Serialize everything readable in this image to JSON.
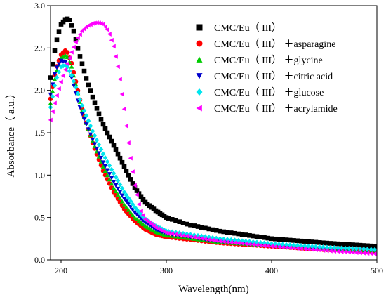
{
  "chart_data": {
    "type": "scatter",
    "title": "",
    "xlabel": "Wavelength(nm)",
    "ylabel": "Absorbance（ a.u.）",
    "xlim": [
      190,
      500
    ],
    "ylim": [
      0.0,
      3.0
    ],
    "xticks": [
      200,
      300,
      400,
      500
    ],
    "xtick_labels": [
      "200",
      "300",
      "400",
      "500"
    ],
    "yticks": [
      0.0,
      0.5,
      1.0,
      1.5,
      2.0,
      2.5,
      3.0
    ],
    "ytick_labels": [
      "0.0",
      "0.5",
      "1.0",
      "1.5",
      "2.0",
      "2.5",
      "3.0"
    ],
    "grid": false,
    "legend_position": "top-right",
    "series": [
      {
        "name": "CMC/Eu（ III）",
        "marker": "square",
        "color": "#000000",
        "points": [
          [
            190,
            2.15
          ],
          [
            195,
            2.55
          ],
          [
            200,
            2.78
          ],
          [
            205,
            2.85
          ],
          [
            208,
            2.83
          ],
          [
            212,
            2.7
          ],
          [
            218,
            2.4
          ],
          [
            225,
            2.1
          ],
          [
            232,
            1.85
          ],
          [
            240,
            1.6
          ],
          [
            250,
            1.35
          ],
          [
            260,
            1.1
          ],
          [
            270,
            0.85
          ],
          [
            280,
            0.68
          ],
          [
            290,
            0.58
          ],
          [
            300,
            0.5
          ],
          [
            320,
            0.42
          ],
          [
            350,
            0.34
          ],
          [
            400,
            0.25
          ],
          [
            450,
            0.2
          ],
          [
            500,
            0.16
          ]
        ]
      },
      {
        "name": "CMC/Eu（ III） ＋asparagine",
        "marker": "circle",
        "color": "#ff0000",
        "points": [
          [
            190,
            1.9
          ],
          [
            195,
            2.25
          ],
          [
            200,
            2.42
          ],
          [
            205,
            2.48
          ],
          [
            210,
            2.32
          ],
          [
            215,
            2.05
          ],
          [
            220,
            1.78
          ],
          [
            230,
            1.38
          ],
          [
            240,
            1.05
          ],
          [
            250,
            0.8
          ],
          [
            260,
            0.6
          ],
          [
            270,
            0.46
          ],
          [
            280,
            0.36
          ],
          [
            290,
            0.3
          ],
          [
            300,
            0.27
          ],
          [
            350,
            0.2
          ],
          [
            400,
            0.16
          ],
          [
            450,
            0.12
          ],
          [
            500,
            0.1
          ]
        ]
      },
      {
        "name": "CMC/Eu（ III） ＋glycine",
        "marker": "triangle-up",
        "color": "#00cc00",
        "points": [
          [
            190,
            1.85
          ],
          [
            195,
            2.2
          ],
          [
            200,
            2.38
          ],
          [
            205,
            2.42
          ],
          [
            210,
            2.28
          ],
          [
            215,
            2.02
          ],
          [
            220,
            1.76
          ],
          [
            230,
            1.4
          ],
          [
            240,
            1.1
          ],
          [
            250,
            0.85
          ],
          [
            260,
            0.65
          ],
          [
            270,
            0.5
          ],
          [
            280,
            0.4
          ],
          [
            290,
            0.33
          ],
          [
            300,
            0.29
          ],
          [
            350,
            0.21
          ],
          [
            400,
            0.17
          ],
          [
            450,
            0.13
          ],
          [
            500,
            0.11
          ]
        ]
      },
      {
        "name": "CMC/Eu（ III） ＋citric acid",
        "marker": "triangle-down",
        "color": "#0000cc",
        "points": [
          [
            190,
            1.95
          ],
          [
            195,
            2.25
          ],
          [
            200,
            2.35
          ],
          [
            205,
            2.33
          ],
          [
            210,
            2.15
          ],
          [
            215,
            1.92
          ],
          [
            220,
            1.72
          ],
          [
            230,
            1.42
          ],
          [
            240,
            1.15
          ],
          [
            250,
            0.92
          ],
          [
            260,
            0.72
          ],
          [
            270,
            0.56
          ],
          [
            280,
            0.44
          ],
          [
            290,
            0.36
          ],
          [
            300,
            0.31
          ],
          [
            350,
            0.22
          ],
          [
            400,
            0.17
          ],
          [
            450,
            0.13
          ],
          [
            500,
            0.11
          ]
        ]
      },
      {
        "name": "CMC/Eu（ III） ＋glucose",
        "marker": "diamond",
        "color": "#00e5ee",
        "points": [
          [
            190,
            1.8
          ],
          [
            195,
            2.12
          ],
          [
            200,
            2.28
          ],
          [
            205,
            2.3
          ],
          [
            210,
            2.18
          ],
          [
            215,
            2.0
          ],
          [
            220,
            1.82
          ],
          [
            230,
            1.52
          ],
          [
            240,
            1.25
          ],
          [
            250,
            1.02
          ],
          [
            260,
            0.8
          ],
          [
            270,
            0.62
          ],
          [
            280,
            0.48
          ],
          [
            290,
            0.4
          ],
          [
            300,
            0.34
          ],
          [
            350,
            0.25
          ],
          [
            400,
            0.19
          ],
          [
            450,
            0.15
          ],
          [
            500,
            0.12
          ]
        ]
      },
      {
        "name": "CMC/Eu（ III） ＋acrylamide",
        "marker": "triangle-left",
        "color": "#ff00ff",
        "points": [
          [
            190,
            1.65
          ],
          [
            195,
            1.9
          ],
          [
            200,
            2.1
          ],
          [
            205,
            2.28
          ],
          [
            210,
            2.45
          ],
          [
            215,
            2.6
          ],
          [
            220,
            2.7
          ],
          [
            225,
            2.76
          ],
          [
            230,
            2.79
          ],
          [
            235,
            2.8
          ],
          [
            240,
            2.78
          ],
          [
            245,
            2.7
          ],
          [
            250,
            2.52
          ],
          [
            255,
            2.22
          ],
          [
            260,
            1.78
          ],
          [
            265,
            1.28
          ],
          [
            270,
            0.88
          ],
          [
            275,
            0.6
          ],
          [
            280,
            0.48
          ],
          [
            290,
            0.38
          ],
          [
            300,
            0.32
          ],
          [
            350,
            0.22
          ],
          [
            400,
            0.16
          ],
          [
            450,
            0.11
          ],
          [
            500,
            0.07
          ]
        ]
      }
    ]
  }
}
